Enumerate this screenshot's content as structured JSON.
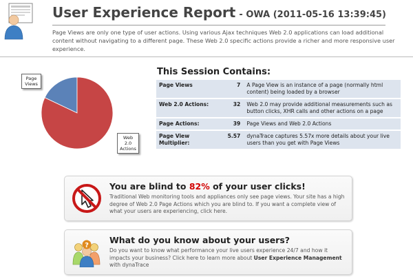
{
  "header": {
    "title": "User Experience Report",
    "subtitle": "- OWA (2011-05-16 13:39:45)",
    "intro": "Page Views are only one type of user actions. Using various Ajax techniques Web 2.0 applications can load additional content without navigating to a different page. These Web 2.0 specific actions provide a richer and more responsive user experience."
  },
  "chart_data": {
    "type": "pie",
    "title": "",
    "categories": [
      "Page Views",
      "Web 2.0 Actions"
    ],
    "values": [
      7,
      32
    ],
    "colors": [
      "#5b82b8",
      "#c64545"
    ],
    "legend": "callout-labels"
  },
  "chart_labels": {
    "page_views": [
      "Page",
      "Views"
    ],
    "web_actions": [
      "Web",
      "2.0",
      "Actions"
    ]
  },
  "session": {
    "title": "This Session Contains:",
    "rows": [
      {
        "label": "Page Views",
        "value": "7",
        "desc": "A Page View is an instance of a page (normally html content) being loaded by a browser"
      },
      {
        "label": "Web 2.0 Actions:",
        "value": "32",
        "desc": "Web 2.0 may provide additional measurements such as button clicks, XHR calls and other actions on a page"
      },
      {
        "label": "Page Actions:",
        "value": "39",
        "desc": "Page Views and Web 2.0 Actions"
      },
      {
        "label": "Page View Multiplier:",
        "value": "5.57",
        "desc": "dynaTrace captures 5.57x more details about your live users than you get with Page Views"
      }
    ]
  },
  "blind_card": {
    "title_pre": "You are blind to ",
    "title_pct": "82%",
    "title_post": " of your user clicks!",
    "body": "Traditional Web monitoring tools and appliances only see page views. Your site has a high degree of Web 2.0 Page Actions which you are blind to. If you want a complete view of what your users are experiencing, click here.",
    "icon": "blocked-cursor-icon"
  },
  "users_card": {
    "title": "What do you know about your users?",
    "body_pre": "Do you want to know what performance your live users experience 24/7 and how it impacts your business? Click here to learn more about ",
    "body_bold": "User Experience Management",
    "body_post": " with dynaTrace",
    "icon": "users-question-icon"
  }
}
